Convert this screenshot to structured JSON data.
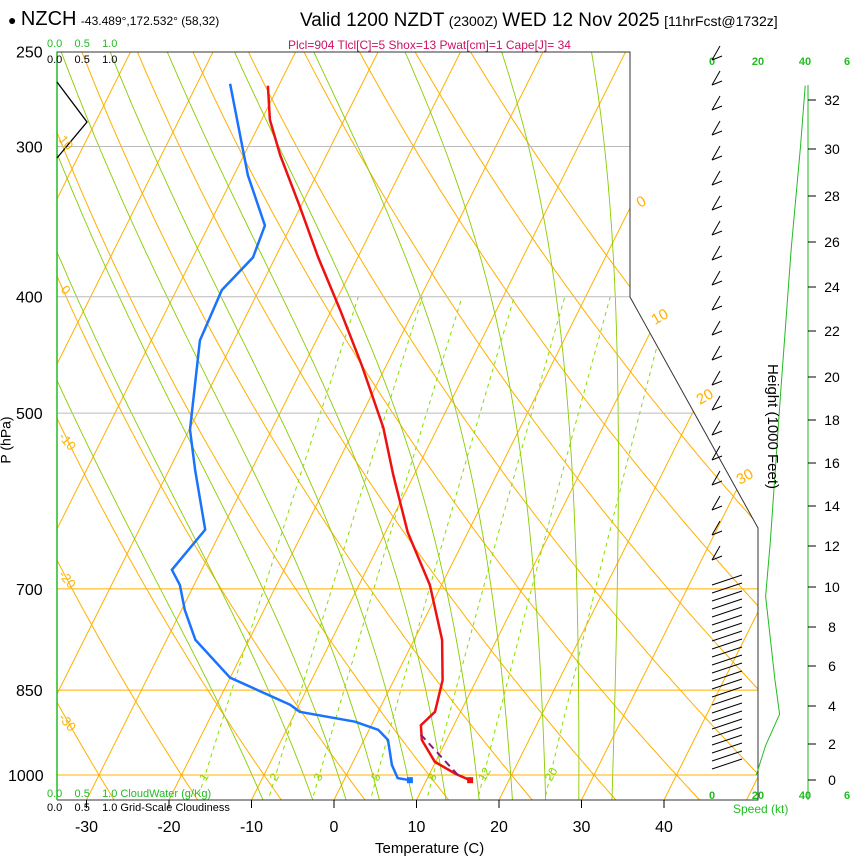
{
  "header": {
    "station": "NZCH",
    "coords": "-43.489°,172.532° (58,32)",
    "valid": "Valid 1200 NZDT",
    "utc": "(2300Z)",
    "date": "WED 12 Nov 2025",
    "fcst": "[11hrFcst@1732z]",
    "indices": "Plcl=904 Tlcl[C]=5 Shox=13 Pwat[cm]=1 Cape[J]= 34"
  },
  "colors": {
    "temperature": "#ee1111",
    "dewpoint": "#1a73ff",
    "parcel": "#8b1a7a",
    "isotherm": "#ffb000",
    "moist": "#88cc00",
    "mixing": "#88dd00",
    "accent": "#cc1166",
    "green": "#22bb22"
  },
  "scales": {
    "top_green": [
      "0.0",
      "0.5",
      "1.0"
    ],
    "top_black": [
      "0.0",
      "0.5",
      "1.0"
    ],
    "bottom_green": [
      "0.0",
      "0.5",
      "1.0"
    ],
    "bottom_green_label": "CloudWater (g/Kg)",
    "bottom_black": [
      "0.0",
      "0.5",
      "1.0"
    ],
    "bottom_black_label": "Grid-Scale Cloudiness",
    "speed_ticks": [
      "0",
      "20",
      "40",
      "6"
    ],
    "speed_label": "Speed (kt)",
    "height_label": "Height (1000 Feet)"
  },
  "chart_data": {
    "type": "line",
    "title": "Skew-T log-P sounding",
    "xlabel": "Temperature (C)",
    "ylabel": "P (hPa)",
    "x_ticks": [
      "-30",
      "-20",
      "-10",
      "0",
      "10",
      "20",
      "30",
      "40"
    ],
    "y_ticks": [
      "250",
      "300",
      "400",
      "500",
      "700",
      "850",
      "1000"
    ],
    "height_ticks": [
      "0",
      "2",
      "4",
      "6",
      "8",
      "10",
      "12",
      "14",
      "16",
      "18",
      "20",
      "22",
      "24",
      "26",
      "28",
      "30",
      "32"
    ],
    "isotherm_labels": [
      "0",
      "10",
      "20",
      "30"
    ],
    "adiabat_labels": [
      "10",
      "0",
      "-10",
      "-20",
      "-30"
    ],
    "mixing_ratio_labels": [
      "1",
      "2",
      "3",
      "5",
      "8",
      "12",
      "20"
    ],
    "mixing_ratios": [
      1,
      2,
      3,
      5,
      8,
      12,
      20
    ],
    "series": [
      {
        "name": "temperature",
        "p": [
          1010,
          998,
          975,
          935,
          909,
          886,
          834,
          772,
          695,
          628,
          563,
          514,
          456,
          410,
          371,
          336,
          305,
          285,
          267
        ],
        "t": [
          15.3,
          13.2,
          9.9,
          7.0,
          6.0,
          6.9,
          5.9,
          3.4,
          -1.4,
          -7.3,
          -12.5,
          -16.6,
          -23.0,
          -29.0,
          -34.8,
          -40.2,
          -45.6,
          -49.0,
          -51.3
        ]
      },
      {
        "name": "dewpoint",
        "p": [
          1010,
          1006,
          981,
          935,
          917,
          903,
          886,
          874,
          830,
          772,
          729,
          695,
          675,
          625,
          558,
          516,
          435,
          395,
          371,
          349,
          317,
          266
        ],
        "t": [
          8.0,
          6.4,
          4.9,
          2.9,
          1.1,
          -2.2,
          -9.5,
          -11.1,
          -20,
          -26.5,
          -29.6,
          -31.7,
          -33.6,
          -32,
          -36.8,
          -39.9,
          -44.1,
          -44.5,
          -42.7,
          -43.2,
          -48.3,
          -56
        ]
      },
      {
        "name": "parcel",
        "p": [
          1000,
          925
        ],
        "t": [
          13.5,
          6.5
        ]
      },
      {
        "name": "wind_speed_kt",
        "p": [
          1000,
          945,
          890,
          833,
          710,
          640,
          480,
          365,
          300,
          267
        ],
        "v": [
          19,
          23,
          29,
          27,
          23,
          25,
          29.5,
          34,
          38,
          40
        ]
      }
    ],
    "surface": {
      "t": 15.3,
      "td": 8.0,
      "p": 1010
    }
  }
}
